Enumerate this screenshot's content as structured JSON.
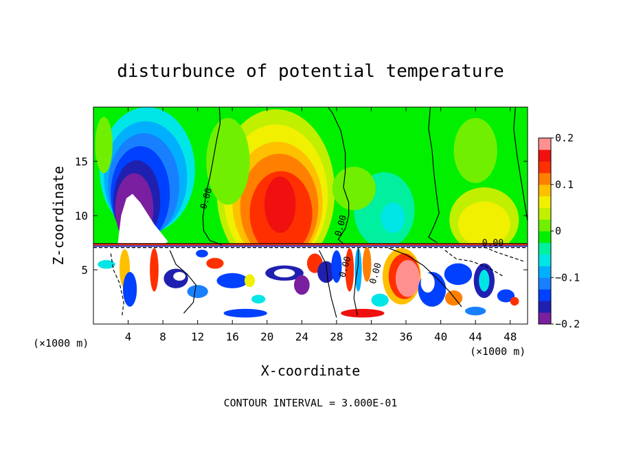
{
  "chart_data": {
    "type": "heatmap",
    "title": "disturbunce of potential temperature",
    "xlabel": "X-coordinate",
    "ylabel": "Z-coordinate",
    "x_unit": "(×1000 m)",
    "x_unit_right": "(×1000 m)",
    "xlim": [
      0,
      50
    ],
    "ylim": [
      0,
      20
    ],
    "x_ticks": [
      4,
      8,
      12,
      16,
      20,
      24,
      28,
      32,
      36,
      40,
      44,
      48
    ],
    "y_ticks": [
      5,
      10,
      15
    ],
    "footer": "CONTOUR INTERVAL = 3.000E-01",
    "colorbar": {
      "min": -0.2,
      "max": 0.2,
      "ticks": [
        {
          "value": 0.2,
          "label": "0.2"
        },
        {
          "value": 0.1,
          "label": "0.1"
        },
        {
          "value": 0,
          "label": "0"
        },
        {
          "value": -0.1,
          "label": "−0.1"
        },
        {
          "value": -0.2,
          "label": "−0.2"
        }
      ],
      "colors": [
        "#7a1f9f",
        "#2020b0",
        "#0040ff",
        "#1880ff",
        "#00b0ff",
        "#00e6e6",
        "#00f0a0",
        "#00f000",
        "#70f000",
        "#c0f000",
        "#f0f000",
        "#ffc000",
        "#ff8000",
        "#ff3000",
        "#f01010",
        "#ff9090"
      ]
    },
    "contour_labels": [
      {
        "x": 13.3,
        "z": 11.5,
        "text": "0.00"
      },
      {
        "x": 28.8,
        "z": 9.0,
        "text": "0.00"
      },
      {
        "x": 46.0,
        "z": 7.2,
        "text": "0.00"
      },
      {
        "x": 29.3,
        "z": 5.2,
        "text": "0.00"
      },
      {
        "x": 32.8,
        "z": 4.6,
        "text": "0.00"
      }
    ],
    "features": [
      {
        "x": 4.5,
        "z": 10.5,
        "value": -0.2
      },
      {
        "x": 6.0,
        "z": 15.0,
        "value": -0.1
      },
      {
        "x": 21.0,
        "z": 11.0,
        "value": 0.18
      },
      {
        "x": 20.5,
        "z": 14.0,
        "value": 0.12
      },
      {
        "x": 33.0,
        "z": 10.0,
        "value": -0.05
      },
      {
        "x": 45.0,
        "z": 9.5,
        "value": 0.07
      }
    ]
  }
}
